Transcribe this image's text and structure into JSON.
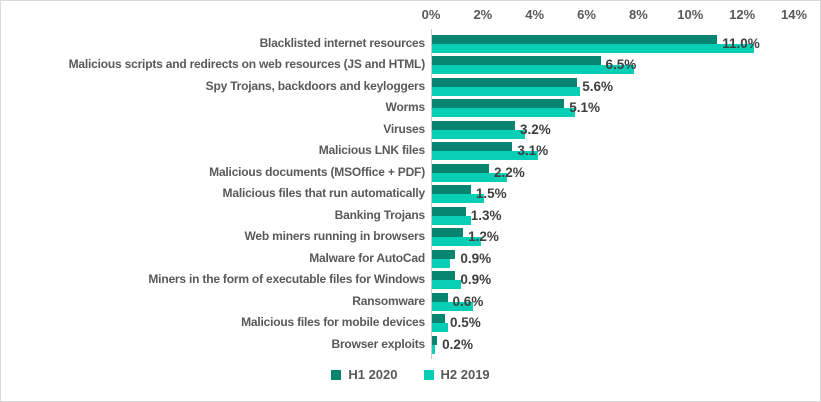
{
  "chart_data": {
    "type": "bar",
    "orientation": "horizontal",
    "categories": [
      "Blacklisted internet resources",
      "Malicious scripts and redirects on web resources (JS and HTML)",
      "Spy Trojans, backdoors and keyloggers",
      "Worms",
      "Viruses",
      "Malicious LNK files",
      "Malicious documents (MSOffice + PDF)",
      "Malicious files that run automatically",
      "Banking Trojans",
      "Web miners running in browsers",
      "Malware for AutoCad",
      "Miners in the form of executable files for Windows",
      "Ransomware",
      "Malicious files for mobile devices",
      "Browser exploits"
    ],
    "series": [
      {
        "name": "H1 2020",
        "color": "#088570",
        "values": [
          11.0,
          6.5,
          5.6,
          5.1,
          3.2,
          3.1,
          2.2,
          1.5,
          1.3,
          1.2,
          0.9,
          0.9,
          0.6,
          0.5,
          0.2
        ],
        "show_data_labels": true
      },
      {
        "name": "H2 2019",
        "color": "#06cfb6",
        "values": [
          12.4,
          7.8,
          5.7,
          5.5,
          3.6,
          4.1,
          2.9,
          2.0,
          1.5,
          1.9,
          0.7,
          1.1,
          1.6,
          0.6,
          0.1
        ],
        "show_data_labels": false
      }
    ],
    "data_labels": [
      "11.0%",
      "6.5%",
      "5.6%",
      "5.1%",
      "3.2%",
      "3.1%",
      "2.2%",
      "1.5%",
      "1.3%",
      "1.2%",
      "0.9%",
      "0.9%",
      "0.6%",
      "0.5%",
      "0.2%"
    ],
    "x_axis": {
      "position": "top",
      "min": 0,
      "max": 14,
      "tick_step": 2,
      "tick_labels": [
        "0%",
        "2%",
        "4%",
        "6%",
        "8%",
        "10%",
        "12%",
        "14%"
      ],
      "gridlines": false
    },
    "legend": {
      "position": "bottom",
      "entries": [
        {
          "label": "H1 2020",
          "color": "#088570"
        },
        {
          "label": "H2 2019",
          "color": "#06cfb6"
        }
      ]
    },
    "value_suffix": "%",
    "label_color": "#595959",
    "data_label_color": "#3f3f3f"
  }
}
